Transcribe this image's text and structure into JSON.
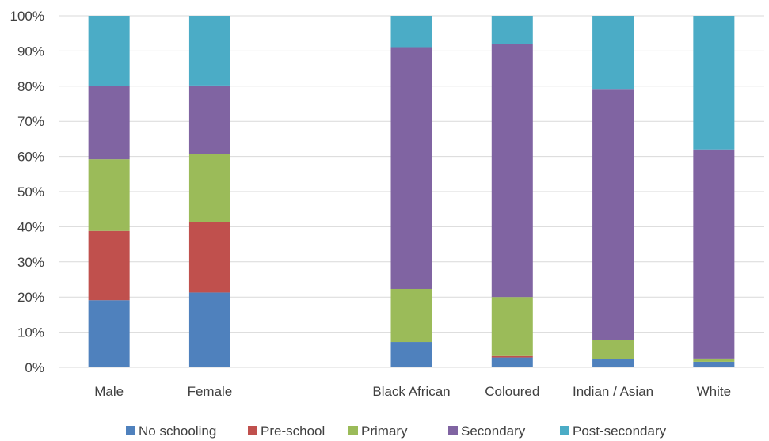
{
  "chart_data": {
    "type": "bar",
    "stacked": true,
    "stack_mode": "percent",
    "title": "",
    "xlabel": "",
    "ylabel": "",
    "ylim": [
      0,
      100
    ],
    "yticks": [
      "0%",
      "10%",
      "20%",
      "30%",
      "40%",
      "50%",
      "60%",
      "70%",
      "80%",
      "90%",
      "100%"
    ],
    "categories": [
      "Male",
      "Female",
      "",
      "Black African",
      "Coloured",
      "Indian / Asian",
      "White"
    ],
    "grid": true,
    "legend_position": "bottom",
    "series": [
      {
        "name": "No schooling",
        "color": "#4F81BD",
        "values": [
          19.1,
          21.3,
          0,
          7.2,
          2.8,
          2.4,
          1.6
        ]
      },
      {
        "name": "Pre-school",
        "color": "#C0504D",
        "values": [
          19.7,
          20.0,
          0,
          0,
          0.4,
          0,
          0
        ]
      },
      {
        "name": "Primary",
        "color": "#9BBB59",
        "values": [
          20.4,
          19.5,
          0,
          15.1,
          16.8,
          5.4,
          0.9
        ]
      },
      {
        "name": "Secondary",
        "color": "#8064A2",
        "values": [
          20.8,
          19.4,
          0,
          68.8,
          72.1,
          71.2,
          59.5
        ]
      },
      {
        "name": "Post-secondary",
        "color": "#4BACC6",
        "values": [
          20.0,
          19.8,
          0,
          8.9,
          7.9,
          21.0,
          38.0
        ]
      }
    ]
  }
}
